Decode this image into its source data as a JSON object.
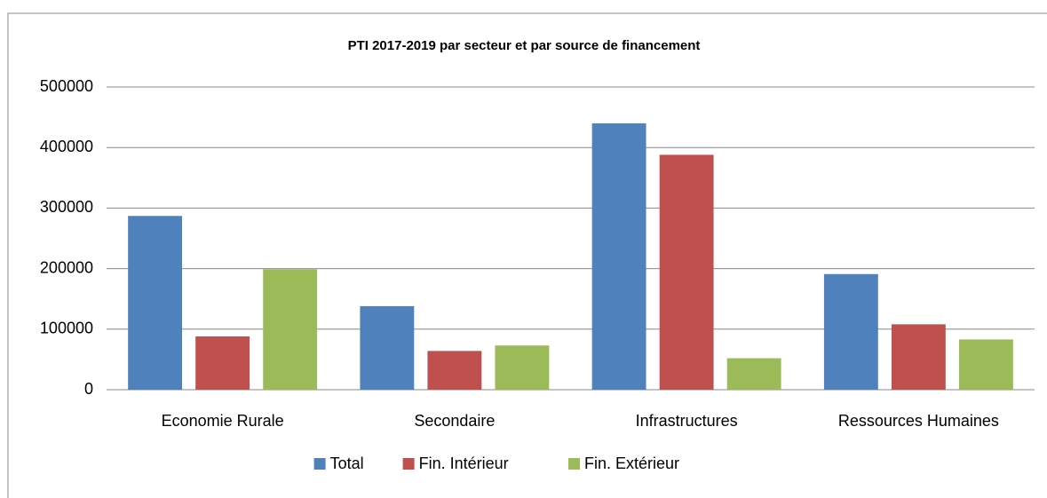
{
  "chart_data": {
    "type": "bar",
    "title": "PTI 2017-2019 par secteur et par source de financement",
    "categories": [
      "Economie Rurale",
      "Secondaire",
      "Infrastructures",
      "Ressources Humaines"
    ],
    "series": [
      {
        "name": "Total",
        "color": "#4f81bd",
        "values": [
          287000,
          138000,
          440000,
          191000
        ]
      },
      {
        "name": "Fin. Intérieur",
        "color": "#c0504d",
        "values": [
          88000,
          64000,
          388000,
          108000
        ]
      },
      {
        "name": "Fin. Extérieur",
        "color": "#9bbb59",
        "values": [
          199000,
          73000,
          52000,
          83000
        ]
      }
    ],
    "ylim": [
      0,
      500000
    ],
    "yticks": [
      0,
      100000,
      200000,
      300000,
      400000,
      500000
    ],
    "grid": true,
    "legend": "bottom"
  }
}
